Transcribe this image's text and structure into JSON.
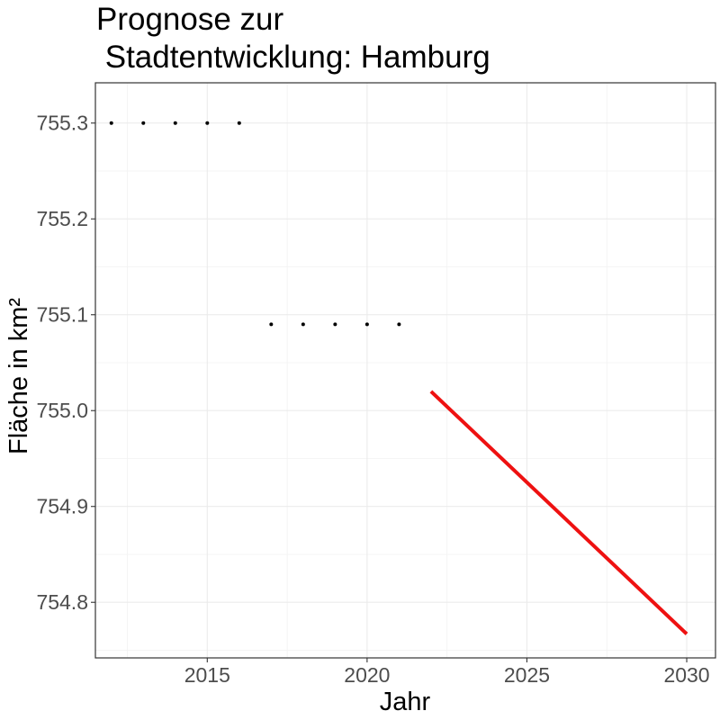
{
  "chart_data": {
    "type": "line",
    "title_lines": [
      "Prognose zur",
      " Stadtentwicklung: Hamburg"
    ],
    "xlabel": "Jahr",
    "ylabel": "Fläche in km²",
    "xlim": [
      2011.5,
      2030.9
    ],
    "ylim": [
      754.742,
      755.342
    ],
    "x_ticks": [
      {
        "value": 2015,
        "label": "2015"
      },
      {
        "value": 2020,
        "label": "2020"
      },
      {
        "value": 2025,
        "label": "2025"
      },
      {
        "value": 2030,
        "label": "2030"
      }
    ],
    "y_ticks": [
      {
        "value": 754.8,
        "label": "754.8"
      },
      {
        "value": 754.9,
        "label": "754.9"
      },
      {
        "value": 755.0,
        "label": "755.0"
      },
      {
        "value": 755.1,
        "label": "755.1"
      },
      {
        "value": 755.2,
        "label": "755.2"
      },
      {
        "value": 755.3,
        "label": "755.3"
      }
    ],
    "grid": true,
    "series": [
      {
        "kind": "points",
        "color": "#000000",
        "x": [
          2012,
          2013,
          2014,
          2015,
          2016,
          2017,
          2018,
          2019,
          2020,
          2021
        ],
        "y": [
          755.3,
          755.3,
          755.3,
          755.3,
          755.3,
          755.09,
          755.09,
          755.09,
          755.09,
          755.09
        ]
      },
      {
        "kind": "line",
        "color": "#ee1111",
        "x": [
          2022,
          2030
        ],
        "y": [
          755.02,
          754.767
        ]
      }
    ]
  }
}
